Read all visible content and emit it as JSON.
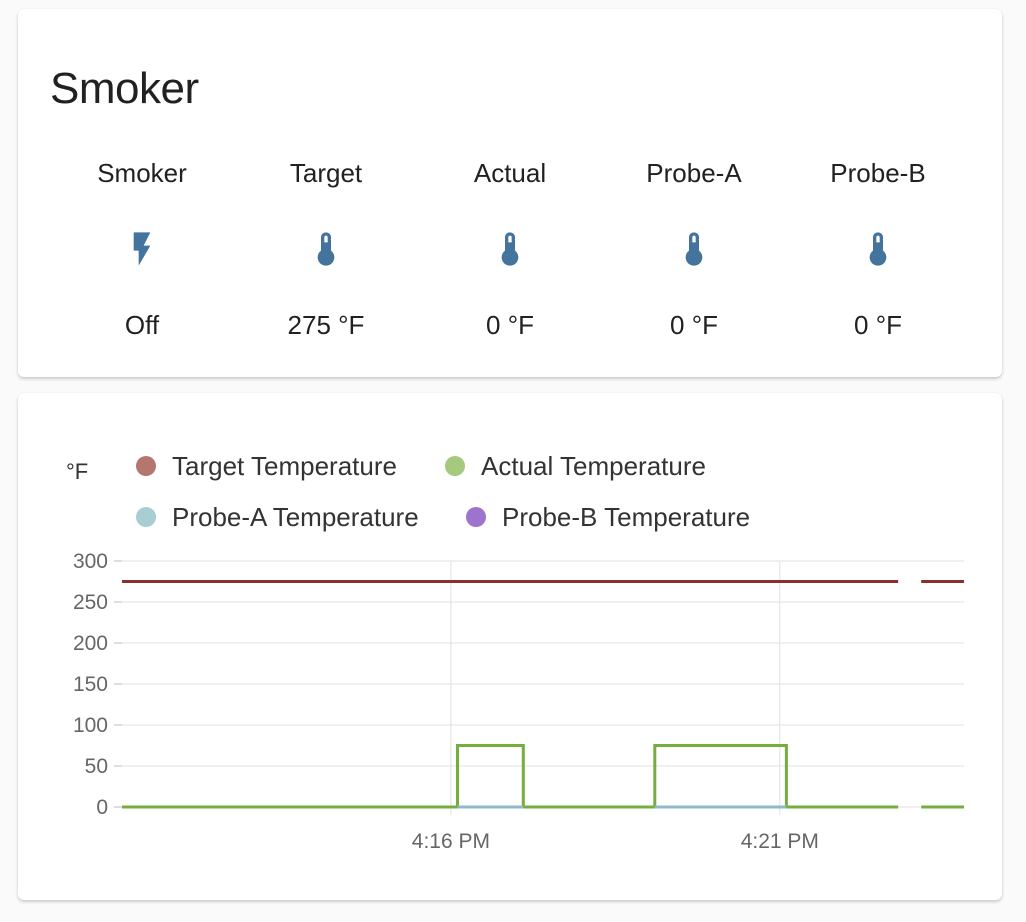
{
  "card": {
    "title": "Smoker"
  },
  "entities": [
    {
      "name": "Smoker",
      "icon": "lightning-bolt-icon",
      "state": "Off"
    },
    {
      "name": "Target",
      "icon": "thermometer-icon",
      "state": "275 °F"
    },
    {
      "name": "Actual",
      "icon": "thermometer-icon",
      "state": "0 °F"
    },
    {
      "name": "Probe-A",
      "icon": "thermometer-icon",
      "state": "0 °F"
    },
    {
      "name": "Probe-B",
      "icon": "thermometer-icon",
      "state": "0 °F"
    }
  ],
  "colors": {
    "icon": "#44739e",
    "target": "#8b2e2e",
    "actual": "#76ad3f",
    "probe_a": "#8fb8c8",
    "probe_b": "#9b6fd1",
    "target_legend": "#b5766f",
    "actual_legend": "#a5c97e",
    "probe_a_legend": "#a8cdd2",
    "probe_b_legend": "#9d73ce"
  },
  "chart": {
    "unit": "°F"
  },
  "chart_data": {
    "type": "line",
    "ylabel": "°F",
    "ylim": [
      0,
      300
    ],
    "yticks": [
      0,
      50,
      100,
      150,
      200,
      250,
      300
    ],
    "xlim": [
      "4:11 PM",
      "4:24 PM"
    ],
    "xticks": [
      {
        "label": "4:16 PM",
        "minute": 16
      },
      {
        "label": "4:21 PM",
        "minute": 21
      }
    ],
    "series": [
      {
        "name": "Target Temperature",
        "color_key": "target",
        "points": [
          [
            11.0,
            275
          ],
          [
            22.8,
            275
          ],
          [
            23.0,
            null
          ],
          [
            23.15,
            275
          ],
          [
            23.8,
            275
          ]
        ]
      },
      {
        "name": "Actual Temperature",
        "color_key": "actual",
        "points": [
          [
            11.0,
            0
          ],
          [
            16.1,
            0
          ],
          [
            16.1,
            75
          ],
          [
            17.1,
            75
          ],
          [
            17.1,
            0
          ],
          [
            19.1,
            0
          ],
          [
            19.1,
            75
          ],
          [
            21.1,
            75
          ],
          [
            21.1,
            0
          ],
          [
            22.8,
            0
          ],
          [
            23.0,
            null
          ],
          [
            23.15,
            0
          ],
          [
            23.8,
            0
          ]
        ]
      },
      {
        "name": "Probe-A Temperature",
        "color_key": "probe_a",
        "points": [
          [
            16.1,
            0
          ],
          [
            17.1,
            0
          ],
          [
            17.1,
            null
          ],
          [
            19.1,
            0
          ],
          [
            21.1,
            0
          ]
        ]
      },
      {
        "name": "Probe-B Temperature",
        "color_key": "probe_b",
        "points": []
      }
    ],
    "grid": true,
    "legend": "top-left"
  }
}
